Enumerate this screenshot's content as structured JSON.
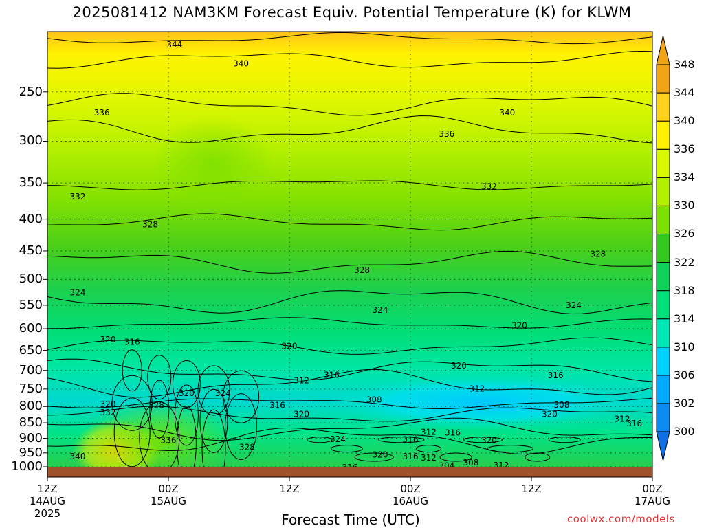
{
  "title": "2025081412 NAM3KM Forecast Equiv. Potential Temperature (K) for KLWM",
  "xlabel": "Forecast Time (UTC)",
  "credit": "coolwx.com/models",
  "chart_data": {
    "type": "heatmap",
    "variable": "Equivalent Potential Temperature (K)",
    "y_axis": {
      "label": "",
      "units": "hPa",
      "scale": "log-pressure, reversed",
      "range": [
        1000,
        200
      ],
      "ticks": [
        1000,
        950,
        900,
        850,
        800,
        750,
        700,
        650,
        600,
        550,
        500,
        450,
        400,
        350,
        300,
        250
      ]
    },
    "x_axis": {
      "label": "Forecast Time (UTC)",
      "range": [
        "2025-08-14 12Z",
        "2025-08-17 00Z"
      ],
      "ticks": [
        {
          "l1": "12Z",
          "l2": "14AUG",
          "l3": "2025"
        },
        {
          "l1": "00Z",
          "l2": "15AUG",
          "l3": ""
        },
        {
          "l1": "12Z",
          "l2": "",
          "l3": ""
        },
        {
          "l1": "00Z",
          "l2": "16AUG",
          "l3": ""
        },
        {
          "l1": "12Z",
          "l2": "",
          "l3": ""
        },
        {
          "l1": "00Z",
          "l2": "17AUG",
          "l3": ""
        }
      ]
    },
    "colorbar": {
      "levels": [
        300,
        302,
        306,
        310,
        314,
        318,
        322,
        326,
        330,
        334,
        336,
        340,
        344,
        348
      ],
      "colors": [
        "#0f6fe6",
        "#0a8cf2",
        "#00aaff",
        "#00d2ff",
        "#00e6b4",
        "#00e07a",
        "#10d25a",
        "#35c820",
        "#7ee000",
        "#b2f000",
        "#d8f800",
        "#fff200",
        "#ffd21e",
        "#f0a416"
      ]
    },
    "contour_labels": [
      {
        "t": 0.21,
        "p": 210,
        "v": "344"
      },
      {
        "t": 0.32,
        "p": 225,
        "v": "340"
      },
      {
        "t": 0.09,
        "p": 270,
        "v": "336"
      },
      {
        "t": 0.76,
        "p": 270,
        "v": "340"
      },
      {
        "t": 0.66,
        "p": 292,
        "v": "336"
      },
      {
        "t": 0.05,
        "p": 368,
        "v": "332"
      },
      {
        "t": 0.73,
        "p": 355,
        "v": "332"
      },
      {
        "t": 0.17,
        "p": 408,
        "v": "328"
      },
      {
        "t": 0.52,
        "p": 483,
        "v": "328"
      },
      {
        "t": 0.91,
        "p": 455,
        "v": "328"
      },
      {
        "t": 0.05,
        "p": 525,
        "v": "324"
      },
      {
        "t": 0.55,
        "p": 560,
        "v": "324"
      },
      {
        "t": 0.87,
        "p": 550,
        "v": "324"
      },
      {
        "t": 0.78,
        "p": 593,
        "v": "320"
      },
      {
        "t": 0.1,
        "p": 625,
        "v": "320"
      },
      {
        "t": 0.14,
        "p": 630,
        "v": "316"
      },
      {
        "t": 0.4,
        "p": 640,
        "v": "320"
      },
      {
        "t": 0.68,
        "p": 688,
        "v": "320"
      },
      {
        "t": 0.47,
        "p": 712,
        "v": "316"
      },
      {
        "t": 0.84,
        "p": 713,
        "v": "316"
      },
      {
        "t": 0.42,
        "p": 727,
        "v": "312"
      },
      {
        "t": 0.71,
        "p": 749,
        "v": "312"
      },
      {
        "t": 0.23,
        "p": 762,
        "v": "320"
      },
      {
        "t": 0.29,
        "p": 762,
        "v": "324"
      },
      {
        "t": 0.54,
        "p": 780,
        "v": "308"
      },
      {
        "t": 0.85,
        "p": 795,
        "v": "308"
      },
      {
        "t": 0.1,
        "p": 793,
        "v": "320"
      },
      {
        "t": 0.18,
        "p": 796,
        "v": "328"
      },
      {
        "t": 0.38,
        "p": 796,
        "v": "316"
      },
      {
        "t": 0.1,
        "p": 818,
        "v": "332"
      },
      {
        "t": 0.42,
        "p": 823,
        "v": "320"
      },
      {
        "t": 0.83,
        "p": 823,
        "v": "320"
      },
      {
        "t": 0.95,
        "p": 838,
        "v": "312"
      },
      {
        "t": 0.97,
        "p": 852,
        "v": "316"
      },
      {
        "t": 0.63,
        "p": 880,
        "v": "312"
      },
      {
        "t": 0.67,
        "p": 882,
        "v": "316"
      },
      {
        "t": 0.48,
        "p": 903,
        "v": "324"
      },
      {
        "t": 0.6,
        "p": 904,
        "v": "316"
      },
      {
        "t": 0.73,
        "p": 907,
        "v": "320"
      },
      {
        "t": 0.2,
        "p": 907,
        "v": "336"
      },
      {
        "t": 0.33,
        "p": 930,
        "v": "328"
      },
      {
        "t": 0.55,
        "p": 956,
        "v": "320"
      },
      {
        "t": 0.6,
        "p": 962,
        "v": "316"
      },
      {
        "t": 0.63,
        "p": 967,
        "v": "312"
      },
      {
        "t": 0.05,
        "p": 963,
        "v": "340"
      },
      {
        "t": 0.66,
        "p": 996,
        "v": "304"
      },
      {
        "t": 0.7,
        "p": 985,
        "v": "308"
      },
      {
        "t": 0.75,
        "p": 995,
        "v": "312"
      },
      {
        "t": 0.5,
        "p": 1002,
        "v": "316"
      }
    ]
  }
}
